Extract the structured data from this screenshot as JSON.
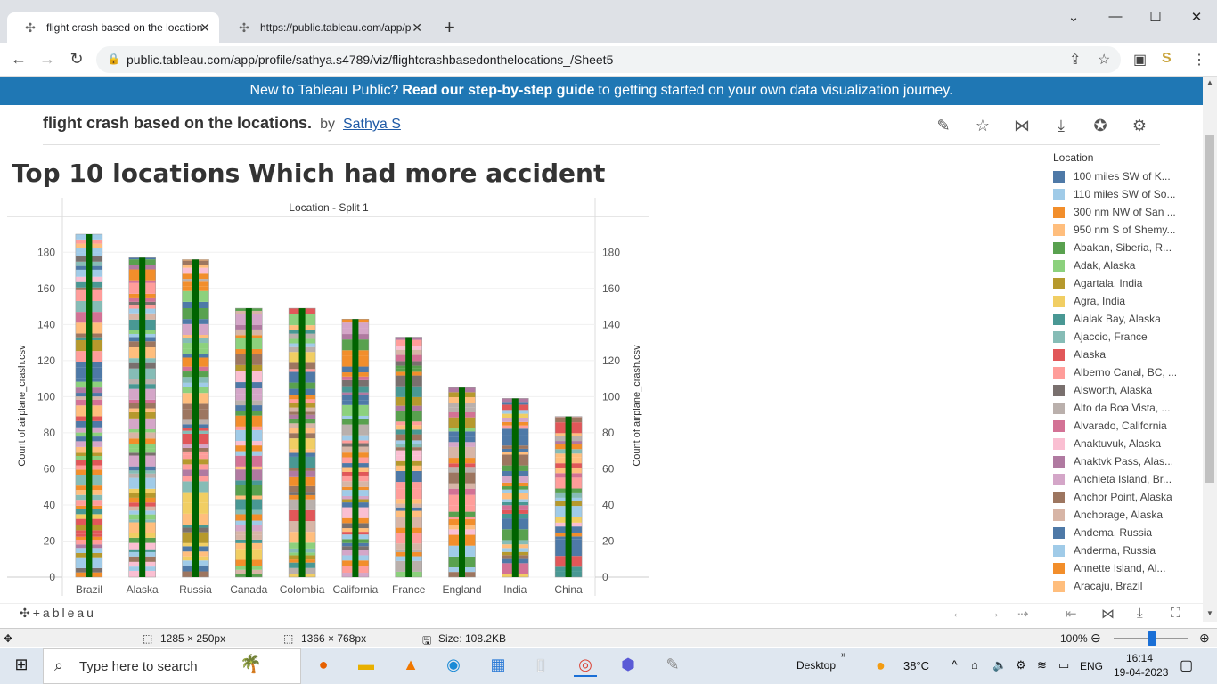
{
  "browser": {
    "tabs": [
      {
        "title": "flight crash based on the location",
        "active": true
      },
      {
        "title": "https://public.tableau.com/app/p",
        "active": false
      }
    ],
    "new_tab": "+",
    "url": "public.tableau.com/app/profile/sathya.s4789/viz/flightcrashbasedonthelocations_/Sheet5"
  },
  "banner": {
    "pre": "New to Tableau Public?",
    "bold": "Read our step-by-step guide",
    "post": "to getting started on your own data visualization journey."
  },
  "viz": {
    "title": "flight crash based on the locations.",
    "by": "by",
    "author": "Sathya S"
  },
  "sheet_title": "Top 10 locations Which had more accident",
  "chart_data": {
    "type": "bar",
    "header": "Location - Split 1",
    "categories": [
      "Brazil",
      "Alaska",
      "Russia",
      "Canada",
      "Colombia",
      "California",
      "France",
      "England",
      "India",
      "China"
    ],
    "values": [
      190,
      177,
      176,
      149,
      149,
      143,
      133,
      105,
      99,
      89
    ],
    "ylabel": "Count of airplane_crash.csv",
    "ylabel_right": "Count of airplane_crash.csv",
    "yticks": [
      0,
      20,
      40,
      60,
      80,
      100,
      120,
      140,
      160,
      180
    ],
    "ylim": [
      0,
      190
    ],
    "stacked_by": "Location",
    "overlay_line_color": "#006400",
    "grid": true
  },
  "legend": {
    "title": "Location",
    "items": [
      {
        "label": "100 miles SW of K...",
        "color": "#4e79a7"
      },
      {
        "label": "110 miles SW of So...",
        "color": "#a0cbe8"
      },
      {
        "label": "300 nm NW of San ...",
        "color": "#f28e2b"
      },
      {
        "label": "950 nm S of Shemy...",
        "color": "#ffbe7d"
      },
      {
        "label": "Abakan, Siberia, R...",
        "color": "#59a14f"
      },
      {
        "label": "Adak, Alaska",
        "color": "#8cd17d"
      },
      {
        "label": "Agartala, India",
        "color": "#b6992d"
      },
      {
        "label": "Agra, India",
        "color": "#f1ce63"
      },
      {
        "label": "Aialak Bay, Alaska",
        "color": "#499894"
      },
      {
        "label": "Ajaccio, France",
        "color": "#86bcb6"
      },
      {
        "label": "Alaska",
        "color": "#e15759"
      },
      {
        "label": "Alberno Canal, BC, ...",
        "color": "#ff9d9a"
      },
      {
        "label": "Alsworth, Alaska",
        "color": "#79706e"
      },
      {
        "label": "Alto da Boa Vista, ...",
        "color": "#bab0ac"
      },
      {
        "label": "Alvarado, California",
        "color": "#d37295"
      },
      {
        "label": "Anaktuvuk, Alaska",
        "color": "#fabfd2"
      },
      {
        "label": "Anaktvk Pass, Alas...",
        "color": "#b07aa1"
      },
      {
        "label": "Anchieta Island, Br...",
        "color": "#d4a6c8"
      },
      {
        "label": "Anchor Point, Alaska",
        "color": "#9d7660"
      },
      {
        "label": "Anchorage, Alaska",
        "color": "#d7b5a6"
      },
      {
        "label": "Andema, Russia",
        "color": "#4e79a7"
      },
      {
        "label": "Anderma, Russia",
        "color": "#a0cbe8"
      },
      {
        "label": "Annette Island, Al...",
        "color": "#f28e2b"
      },
      {
        "label": "Aracaju, Brazil",
        "color": "#ffbe7d"
      }
    ]
  },
  "footer": {
    "logo": "+ableau"
  },
  "statusbar": {
    "selection": "1285 × 250px",
    "screen": "1366 × 768px",
    "size": "Size: 108.2KB",
    "zoom": "100%"
  },
  "taskbar": {
    "search": "Type here to search",
    "desktop": "Desktop",
    "temp": "38°C",
    "lang": "ENG",
    "time": "16:14",
    "date": "19-04-2023"
  }
}
